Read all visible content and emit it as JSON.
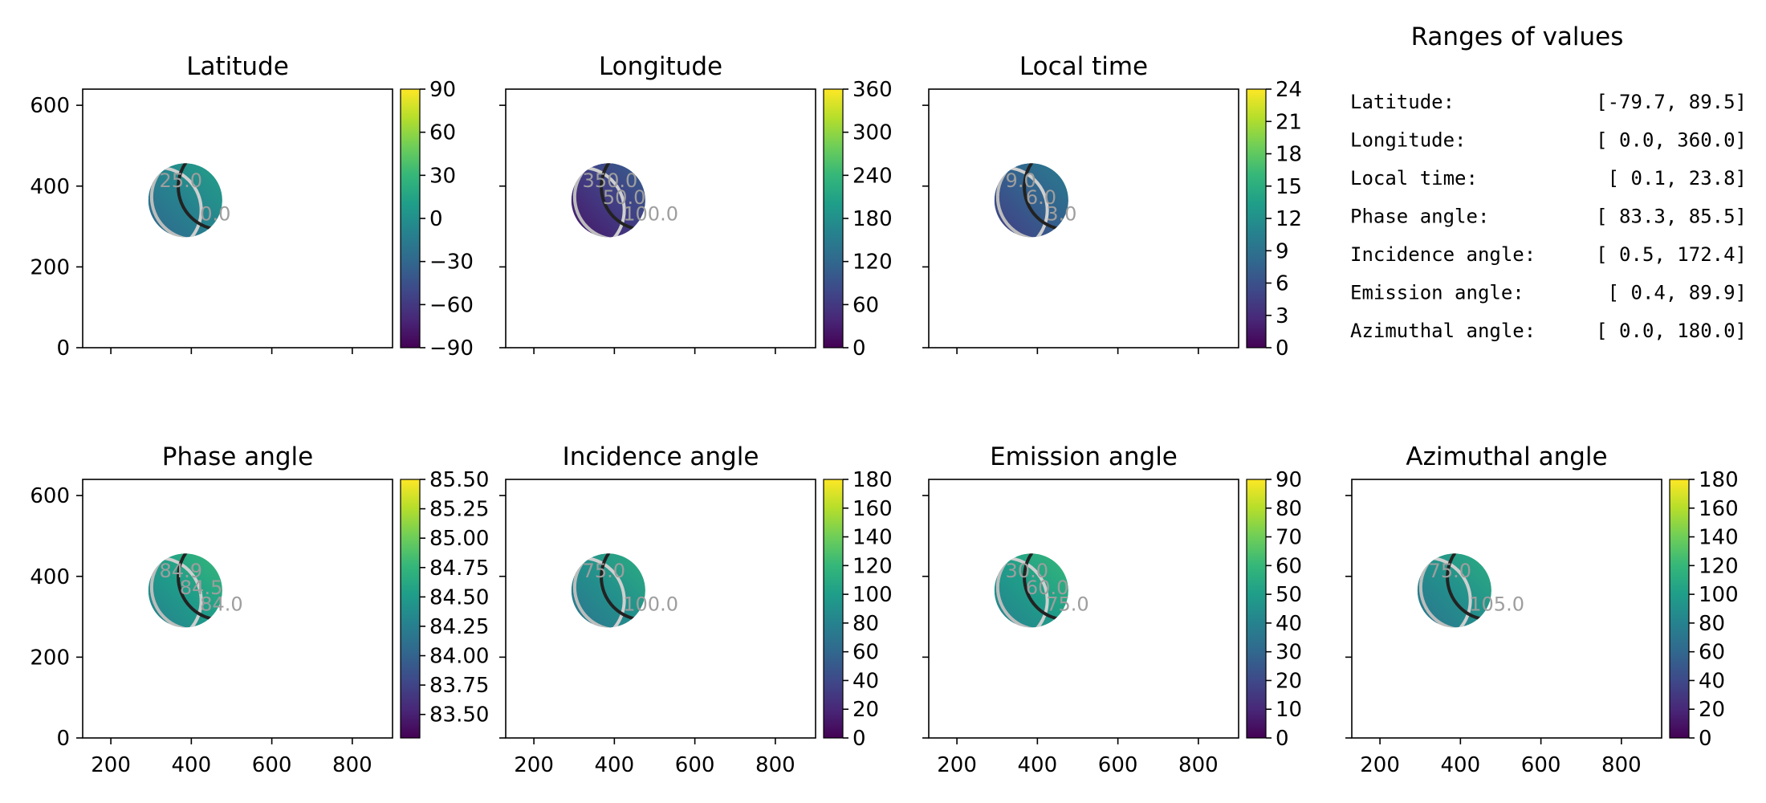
{
  "colormap": [
    "#440154",
    "#482878",
    "#3e4989",
    "#31688e",
    "#26828e",
    "#1f9e89",
    "#35b779",
    "#6ece58",
    "#b5de2b",
    "#fde725"
  ],
  "chart_data": [
    {
      "type": "heatmap",
      "title": "Latitude",
      "colorbar": {
        "min": -90,
        "max": 90,
        "ticks": [
          "90",
          "60",
          "30",
          "0",
          "−30",
          "−60",
          "−90"
        ]
      },
      "contour_labels": [
        "25.0",
        "0.0"
      ],
      "disk_value": 0.45,
      "show_y_ticklabels": true,
      "show_x_ticklabels": false
    },
    {
      "type": "heatmap",
      "title": "Longitude",
      "colorbar": {
        "min": 0,
        "max": 360,
        "ticks": [
          "360",
          "300",
          "240",
          "180",
          "120",
          "60",
          "0"
        ]
      },
      "contour_labels": [
        "350.0",
        "50.0",
        "100.0"
      ],
      "disk_value": 0.18,
      "show_y_ticklabels": false,
      "show_x_ticklabels": false
    },
    {
      "type": "heatmap",
      "title": "Local time",
      "colorbar": {
        "min": 0,
        "max": 24,
        "ticks": [
          "24",
          "21",
          "18",
          "15",
          "12",
          "9",
          "6",
          "3",
          "0"
        ]
      },
      "contour_labels": [
        "9.0",
        "6.0",
        "3.0"
      ],
      "disk_value": 0.3,
      "show_y_ticklabels": false,
      "show_x_ticklabels": false
    },
    {
      "type": "heatmap",
      "title": "Phase angle",
      "colorbar": {
        "min": 83.3,
        "max": 85.5,
        "ticks": [
          "85.50",
          "85.25",
          "85.00",
          "84.75",
          "84.50",
          "84.25",
          "84.00",
          "83.75",
          "83.50"
        ]
      },
      "contour_labels": [
        "84.9",
        "84.5",
        "84.0"
      ],
      "disk_value": 0.55,
      "show_y_ticklabels": true,
      "show_x_ticklabels": true
    },
    {
      "type": "heatmap",
      "title": "Incidence angle",
      "colorbar": {
        "min": 0,
        "max": 180,
        "ticks": [
          "180",
          "160",
          "140",
          "120",
          "100",
          "80",
          "60",
          "40",
          "20",
          "0"
        ]
      },
      "contour_labels": [
        "75.0",
        "100.0"
      ],
      "disk_value": 0.5,
      "show_y_ticklabels": false,
      "show_x_ticklabels": true
    },
    {
      "type": "heatmap",
      "title": "Emission angle",
      "colorbar": {
        "min": 0,
        "max": 90,
        "ticks": [
          "90",
          "80",
          "70",
          "60",
          "50",
          "40",
          "30",
          "20",
          "10",
          "0"
        ]
      },
      "contour_labels": [
        "30.0",
        "60.0",
        "75.0"
      ],
      "disk_value": 0.55,
      "show_y_ticklabels": false,
      "show_x_ticklabels": true
    },
    {
      "type": "heatmap",
      "title": "Azimuthal angle",
      "colorbar": {
        "min": 0,
        "max": 180,
        "ticks": [
          "180",
          "160",
          "140",
          "120",
          "100",
          "80",
          "60",
          "40",
          "20",
          "0"
        ]
      },
      "contour_labels": [
        "75.0",
        "105.0"
      ],
      "disk_value": 0.5,
      "show_y_ticklabels": false,
      "show_x_ticklabels": true
    }
  ],
  "axes": {
    "xlim": [
      130,
      900
    ],
    "ylim": [
      0,
      640
    ],
    "x_ticks": [
      "200",
      "400",
      "600",
      "800"
    ],
    "y_ticks": [
      "600",
      "400",
      "200",
      "0"
    ],
    "disk_center": [
      385,
      365
    ],
    "disk_radius": 92
  },
  "ranges_panel": {
    "title": "Ranges of values",
    "rows": [
      {
        "label": "Latitude:",
        "value": "[-79.7,  89.5]"
      },
      {
        "label": "Longitude:",
        "value": "[  0.0, 360.0]"
      },
      {
        "label": "Local time:",
        "value": "[  0.1,  23.8]"
      },
      {
        "label": "Phase angle:",
        "value": "[ 83.3,  85.5]"
      },
      {
        "label": "Incidence angle:",
        "value": "[  0.5, 172.4]"
      },
      {
        "label": "Emission angle:",
        "value": "[  0.4,  89.9]"
      },
      {
        "label": "Azimuthal angle:",
        "value": "[  0.0, 180.0]"
      }
    ]
  }
}
